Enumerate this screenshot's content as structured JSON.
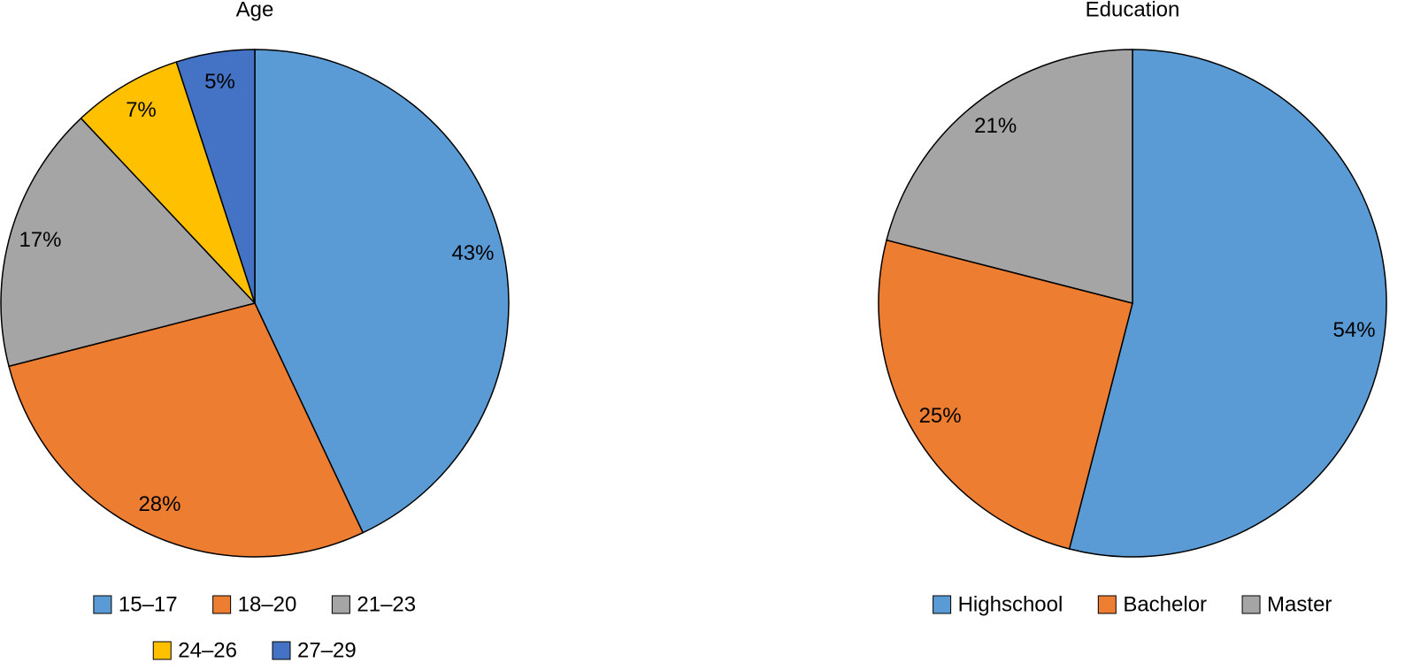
{
  "chart_data": [
    {
      "type": "pie",
      "title": "Age",
      "categories": [
        "15–17",
        "18–20",
        "21–23",
        "24–26",
        "27–29"
      ],
      "values": [
        43,
        28,
        17,
        7,
        5
      ],
      "value_labels": [
        "43%",
        "28%",
        "17%",
        "7%",
        "5%"
      ],
      "colors": [
        "#5B9BD5",
        "#ED7D31",
        "#A5A5A5",
        "#FFC000",
        "#4472C4"
      ],
      "legend": "bottom"
    },
    {
      "type": "pie",
      "title": "Education",
      "categories": [
        "Highschool",
        "Bachelor",
        "Master"
      ],
      "values": [
        54,
        25,
        21
      ],
      "value_labels": [
        "54%",
        "25%",
        "21%"
      ],
      "colors": [
        "#5B9BD5",
        "#ED7D31",
        "#A5A5A5"
      ],
      "legend": "bottom"
    }
  ]
}
